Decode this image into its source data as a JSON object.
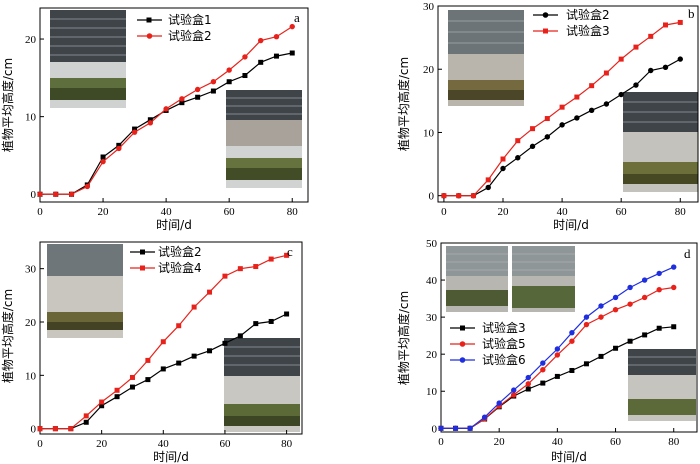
{
  "chart_data": [
    {
      "type": "line",
      "panel_label": "a",
      "xlabel": "时间/d",
      "ylabel": "植物平均高度/cm",
      "xlim": [
        0,
        85
      ],
      "ylim": [
        -1,
        24
      ],
      "xticks": [
        0,
        20,
        40,
        60,
        80
      ],
      "yticks": [
        0,
        10,
        20
      ],
      "legend_position": "top-left",
      "series": [
        {
          "name": "试验盒1",
          "color": "#000000",
          "marker": "square",
          "x": [
            0,
            5,
            10,
            15,
            20,
            25,
            30,
            35,
            40,
            45,
            50,
            55,
            60,
            65,
            70,
            75,
            80
          ],
          "y": [
            0,
            0,
            0,
            1.2,
            4.8,
            6.3,
            8.4,
            9.6,
            10.8,
            11.8,
            12.5,
            13.3,
            14.5,
            15.3,
            17.0,
            17.8,
            18.2
          ]
        },
        {
          "name": "试验盒2",
          "color": "#e8221b",
          "marker": "circle",
          "x": [
            0,
            5,
            10,
            15,
            20,
            25,
            30,
            35,
            40,
            45,
            50,
            55,
            60,
            65,
            70,
            75,
            80
          ],
          "y": [
            0,
            0,
            0,
            1.0,
            4.2,
            5.9,
            8.0,
            9.2,
            11.0,
            12.3,
            13.5,
            14.5,
            16.0,
            17.7,
            19.8,
            20.3,
            21.6
          ]
        }
      ]
    },
    {
      "type": "line",
      "panel_label": "b",
      "xlabel": "时间/d",
      "ylabel": "植物平均高度/cm",
      "xlim": [
        -2,
        86
      ],
      "ylim": [
        -1,
        30
      ],
      "xticks": [
        0,
        20,
        40,
        60,
        80
      ],
      "yticks": [
        0,
        10,
        20,
        30
      ],
      "legend_position": "top-right",
      "series": [
        {
          "name": "试验盒2",
          "color": "#000000",
          "marker": "circle",
          "x": [
            0,
            5,
            10,
            15,
            20,
            25,
            30,
            35,
            40,
            45,
            50,
            55,
            60,
            65,
            70,
            75,
            80
          ],
          "y": [
            0,
            0,
            0,
            1.3,
            4.3,
            6.0,
            7.8,
            9.3,
            11.2,
            12.3,
            13.5,
            14.5,
            16.0,
            17.5,
            19.8,
            20.3,
            21.6
          ]
        },
        {
          "name": "试验盒3",
          "color": "#e8221b",
          "marker": "square",
          "x": [
            0,
            5,
            10,
            15,
            20,
            25,
            30,
            35,
            40,
            45,
            50,
            55,
            60,
            65,
            70,
            75,
            80
          ],
          "y": [
            0,
            0,
            0,
            2.5,
            5.8,
            8.7,
            10.6,
            12.2,
            14.0,
            15.6,
            17.4,
            19.4,
            21.6,
            23.5,
            25.2,
            27.0,
            27.4
          ]
        }
      ]
    },
    {
      "type": "line",
      "panel_label": "c",
      "xlabel": "时间/d",
      "ylabel": "植物平均高度/cm",
      "xlim": [
        0,
        85
      ],
      "ylim": [
        -1,
        35
      ],
      "xticks": [
        0,
        20,
        40,
        60,
        80
      ],
      "yticks": [
        0,
        10,
        20,
        30
      ],
      "legend_position": "top-left",
      "series": [
        {
          "name": "试验盒2",
          "color": "#000000",
          "marker": "square",
          "x": [
            0,
            5,
            10,
            15,
            20,
            25,
            30,
            35,
            40,
            45,
            50,
            55,
            60,
            65,
            70,
            75,
            80
          ],
          "y": [
            0,
            0,
            0,
            1.2,
            4.3,
            6.0,
            7.8,
            9.2,
            11.2,
            12.3,
            13.6,
            14.6,
            16.0,
            17.4,
            19.7,
            20.1,
            21.5
          ]
        },
        {
          "name": "试验盒4",
          "color": "#e8221b",
          "marker": "square",
          "x": [
            0,
            5,
            10,
            15,
            20,
            25,
            30,
            35,
            40,
            45,
            50,
            55,
            60,
            65,
            70,
            75,
            80
          ],
          "y": [
            0,
            0,
            0,
            2.4,
            5.0,
            7.2,
            9.6,
            12.8,
            16.3,
            19.3,
            22.8,
            25.6,
            28.6,
            30.0,
            30.4,
            31.8,
            32.5
          ]
        }
      ]
    },
    {
      "type": "line",
      "panel_label": "d",
      "xlabel": "时间/d",
      "ylabel": "植物平均高度/cm",
      "xlim": [
        0,
        88
      ],
      "ylim": [
        -1,
        50
      ],
      "xticks": [
        0,
        20,
        40,
        60,
        80
      ],
      "yticks": [
        0,
        10,
        20,
        30,
        40,
        50
      ],
      "legend_position": "center-left",
      "series": [
        {
          "name": "试验盒3",
          "color": "#000000",
          "marker": "square",
          "x": [
            0,
            5,
            10,
            15,
            20,
            25,
            30,
            35,
            40,
            45,
            50,
            55,
            60,
            65,
            70,
            75,
            80
          ],
          "y": [
            0,
            0,
            0,
            2.5,
            5.8,
            8.7,
            10.6,
            12.2,
            14.0,
            15.6,
            17.4,
            19.4,
            21.6,
            23.5,
            25.2,
            27.0,
            27.4
          ]
        },
        {
          "name": "试验盒5",
          "color": "#e8221b",
          "marker": "circle",
          "x": [
            0,
            5,
            10,
            15,
            20,
            25,
            30,
            35,
            40,
            45,
            50,
            55,
            60,
            65,
            70,
            75,
            80
          ],
          "y": [
            0,
            0,
            0,
            2.6,
            6.0,
            9.0,
            12.0,
            15.8,
            19.8,
            23.5,
            28.0,
            30.0,
            32.0,
            33.5,
            35.3,
            37.4,
            38.0
          ]
        },
        {
          "name": "试验盒6",
          "color": "#1f2fe0",
          "marker": "circle",
          "x": [
            0,
            5,
            10,
            15,
            20,
            25,
            30,
            35,
            40,
            45,
            50,
            55,
            60,
            65,
            70,
            75,
            80
          ],
          "y": [
            0,
            0,
            0,
            3.0,
            6.8,
            10.3,
            13.7,
            17.6,
            21.4,
            25.8,
            30.0,
            33.0,
            35.3,
            38.0,
            40.0,
            41.8,
            43.5
          ]
        }
      ]
    }
  ]
}
